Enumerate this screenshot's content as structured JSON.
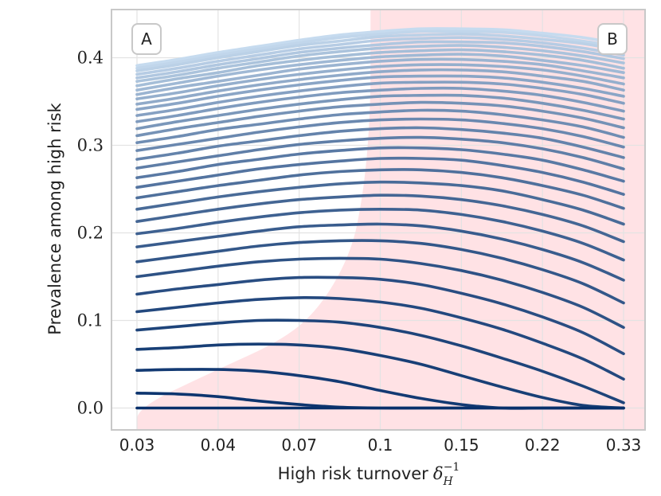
{
  "chart_data": {
    "type": "line",
    "title": "",
    "xlabel": "High risk turnover",
    "xlabel_symbol": "δ",
    "xlabel_sub": "H",
    "xlabel_sup": "−1",
    "ylabel": "Prevalence among high risk",
    "x_ticks": [
      "0.03",
      "0.04",
      "0.07",
      "0.1",
      "0.15",
      "0.22",
      "0.33"
    ],
    "y_ticks": [
      "0.0",
      "0.1",
      "0.2",
      "0.3",
      "0.4"
    ],
    "ylim": [
      -0.025,
      0.455
    ],
    "x_tick_positions": [
      0,
      1,
      2,
      3,
      4,
      5,
      6
    ],
    "x": [
      0,
      0.5,
      1,
      1.5,
      2,
      2.5,
      3,
      3.5,
      4,
      4.5,
      5,
      5.5,
      6
    ],
    "grid": true,
    "region_labels": [
      "A",
      "B"
    ],
    "shaded_region": {
      "label": "B",
      "color": "#ffdde1",
      "boundary_x_at_prevalence": [
        [
          0.0,
          0.0
        ],
        [
          0.04,
          0.9
        ],
        [
          0.08,
          1.85
        ],
        [
          0.12,
          2.3
        ],
        [
          0.18,
          2.65
        ],
        [
          0.24,
          2.78
        ],
        [
          0.3,
          2.85
        ],
        [
          0.36,
          2.88
        ],
        [
          0.4,
          2.88
        ],
        [
          0.455,
          2.88
        ]
      ]
    },
    "line_colors": {
      "low": "#08306b",
      "high": "#c6dbef"
    },
    "series": [
      {
        "name": "s1",
        "values": [
          0.0,
          0.0,
          0.0,
          0.0,
          0.0,
          0.0,
          0.0,
          0.0,
          0.0,
          0.0,
          0.0,
          0.0,
          0.0
        ]
      },
      {
        "name": "s2",
        "values": [
          0.017,
          0.016,
          0.013,
          0.008,
          0.004,
          0.001,
          0.0,
          0.0,
          0.0,
          0.0,
          0.0,
          0.0,
          0.0
        ]
      },
      {
        "name": "s3",
        "values": [
          0.043,
          0.044,
          0.044,
          0.042,
          0.037,
          0.03,
          0.02,
          0.011,
          0.004,
          0.0,
          0.0,
          0.0,
          0.0
        ]
      },
      {
        "name": "s4",
        "values": [
          0.067,
          0.069,
          0.072,
          0.073,
          0.072,
          0.068,
          0.06,
          0.05,
          0.037,
          0.024,
          0.012,
          0.003,
          0.0
        ]
      },
      {
        "name": "s5",
        "values": [
          0.089,
          0.093,
          0.097,
          0.1,
          0.1,
          0.098,
          0.092,
          0.083,
          0.071,
          0.057,
          0.042,
          0.025,
          0.006
        ]
      },
      {
        "name": "s6",
        "values": [
          0.11,
          0.115,
          0.12,
          0.124,
          0.126,
          0.125,
          0.121,
          0.114,
          0.103,
          0.09,
          0.074,
          0.056,
          0.033
        ]
      },
      {
        "name": "s7",
        "values": [
          0.13,
          0.136,
          0.141,
          0.146,
          0.149,
          0.149,
          0.147,
          0.141,
          0.131,
          0.119,
          0.104,
          0.086,
          0.062
        ]
      },
      {
        "name": "s8",
        "values": [
          0.15,
          0.156,
          0.162,
          0.167,
          0.17,
          0.171,
          0.17,
          0.165,
          0.157,
          0.146,
          0.132,
          0.115,
          0.092
        ]
      },
      {
        "name": "s9",
        "values": [
          0.167,
          0.173,
          0.179,
          0.185,
          0.189,
          0.191,
          0.191,
          0.188,
          0.181,
          0.171,
          0.158,
          0.142,
          0.12
        ]
      },
      {
        "name": "s10",
        "values": [
          0.184,
          0.19,
          0.196,
          0.202,
          0.207,
          0.209,
          0.21,
          0.208,
          0.202,
          0.193,
          0.181,
          0.166,
          0.146
        ]
      },
      {
        "name": "s11",
        "values": [
          0.199,
          0.205,
          0.212,
          0.218,
          0.223,
          0.226,
          0.227,
          0.226,
          0.221,
          0.213,
          0.202,
          0.188,
          0.169
        ]
      },
      {
        "name": "s12",
        "values": [
          0.213,
          0.22,
          0.227,
          0.233,
          0.238,
          0.241,
          0.243,
          0.242,
          0.238,
          0.231,
          0.221,
          0.208,
          0.19
        ]
      },
      {
        "name": "s13",
        "values": [
          0.227,
          0.234,
          0.241,
          0.247,
          0.252,
          0.256,
          0.258,
          0.257,
          0.254,
          0.248,
          0.238,
          0.226,
          0.21
        ]
      },
      {
        "name": "s14",
        "values": [
          0.24,
          0.247,
          0.254,
          0.26,
          0.266,
          0.27,
          0.272,
          0.272,
          0.269,
          0.263,
          0.254,
          0.243,
          0.228
        ]
      },
      {
        "name": "s15",
        "values": [
          0.252,
          0.259,
          0.266,
          0.273,
          0.278,
          0.282,
          0.285,
          0.285,
          0.283,
          0.277,
          0.269,
          0.258,
          0.244
        ]
      },
      {
        "name": "s16",
        "values": [
          0.263,
          0.27,
          0.278,
          0.284,
          0.29,
          0.294,
          0.297,
          0.297,
          0.295,
          0.29,
          0.283,
          0.272,
          0.259
        ]
      },
      {
        "name": "s17",
        "values": [
          0.274,
          0.281,
          0.288,
          0.295,
          0.301,
          0.305,
          0.308,
          0.309,
          0.307,
          0.303,
          0.296,
          0.286,
          0.273
        ]
      },
      {
        "name": "s18",
        "values": [
          0.284,
          0.291,
          0.299,
          0.305,
          0.311,
          0.316,
          0.319,
          0.32,
          0.318,
          0.314,
          0.308,
          0.298,
          0.286
        ]
      },
      {
        "name": "s19",
        "values": [
          0.294,
          0.301,
          0.308,
          0.315,
          0.321,
          0.326,
          0.329,
          0.33,
          0.329,
          0.325,
          0.319,
          0.31,
          0.298
        ]
      },
      {
        "name": "s20",
        "values": [
          0.303,
          0.31,
          0.318,
          0.324,
          0.33,
          0.335,
          0.338,
          0.34,
          0.339,
          0.335,
          0.329,
          0.321,
          0.309
        ]
      },
      {
        "name": "s21",
        "values": [
          0.311,
          0.319,
          0.326,
          0.333,
          0.339,
          0.344,
          0.347,
          0.349,
          0.348,
          0.345,
          0.339,
          0.331,
          0.32
        ]
      },
      {
        "name": "s22",
        "values": [
          0.319,
          0.327,
          0.334,
          0.341,
          0.347,
          0.352,
          0.356,
          0.357,
          0.357,
          0.354,
          0.348,
          0.34,
          0.33
        ]
      },
      {
        "name": "s23",
        "values": [
          0.327,
          0.334,
          0.342,
          0.349,
          0.355,
          0.36,
          0.363,
          0.365,
          0.365,
          0.362,
          0.357,
          0.349,
          0.339
        ]
      },
      {
        "name": "s24",
        "values": [
          0.334,
          0.341,
          0.349,
          0.356,
          0.362,
          0.367,
          0.371,
          0.372,
          0.372,
          0.37,
          0.365,
          0.358,
          0.348
        ]
      },
      {
        "name": "s25",
        "values": [
          0.341,
          0.348,
          0.356,
          0.363,
          0.369,
          0.374,
          0.378,
          0.379,
          0.379,
          0.377,
          0.372,
          0.365,
          0.356
        ]
      },
      {
        "name": "s26",
        "values": [
          0.347,
          0.354,
          0.362,
          0.369,
          0.375,
          0.38,
          0.384,
          0.386,
          0.386,
          0.384,
          0.379,
          0.373,
          0.363
        ]
      },
      {
        "name": "s27",
        "values": [
          0.353,
          0.36,
          0.368,
          0.375,
          0.381,
          0.386,
          0.39,
          0.392,
          0.392,
          0.39,
          0.386,
          0.379,
          0.37
        ]
      },
      {
        "name": "s28",
        "values": [
          0.358,
          0.366,
          0.373,
          0.38,
          0.387,
          0.392,
          0.396,
          0.398,
          0.398,
          0.396,
          0.392,
          0.385,
          0.377
        ]
      },
      {
        "name": "s29",
        "values": [
          0.363,
          0.371,
          0.379,
          0.386,
          0.392,
          0.397,
          0.401,
          0.403,
          0.404,
          0.402,
          0.397,
          0.391,
          0.383
        ]
      },
      {
        "name": "s30",
        "values": [
          0.368,
          0.376,
          0.383,
          0.391,
          0.397,
          0.402,
          0.406,
          0.408,
          0.409,
          0.407,
          0.403,
          0.397,
          0.388
        ]
      },
      {
        "name": "s31",
        "values": [
          0.373,
          0.38,
          0.388,
          0.395,
          0.402,
          0.407,
          0.411,
          0.413,
          0.414,
          0.412,
          0.408,
          0.402,
          0.394
        ]
      },
      {
        "name": "s32",
        "values": [
          0.377,
          0.384,
          0.392,
          0.399,
          0.406,
          0.411,
          0.415,
          0.418,
          0.418,
          0.417,
          0.413,
          0.407,
          0.399
        ]
      },
      {
        "name": "s33",
        "values": [
          0.381,
          0.388,
          0.396,
          0.403,
          0.41,
          0.415,
          0.42,
          0.422,
          0.423,
          0.421,
          0.417,
          0.411,
          0.403
        ]
      },
      {
        "name": "s34",
        "values": [
          0.385,
          0.392,
          0.4,
          0.407,
          0.414,
          0.419,
          0.424,
          0.426,
          0.427,
          0.425,
          0.421,
          0.416,
          0.408
        ]
      },
      {
        "name": "s35",
        "values": [
          0.388,
          0.395,
          0.403,
          0.41,
          0.417,
          0.423,
          0.427,
          0.43,
          0.43,
          0.429,
          0.425,
          0.419,
          0.412
        ]
      },
      {
        "name": "s36",
        "values": [
          0.391,
          0.398,
          0.406,
          0.413,
          0.42,
          0.426,
          0.43,
          0.433,
          0.433,
          0.432,
          0.428,
          0.423,
          0.415
        ]
      }
    ]
  }
}
